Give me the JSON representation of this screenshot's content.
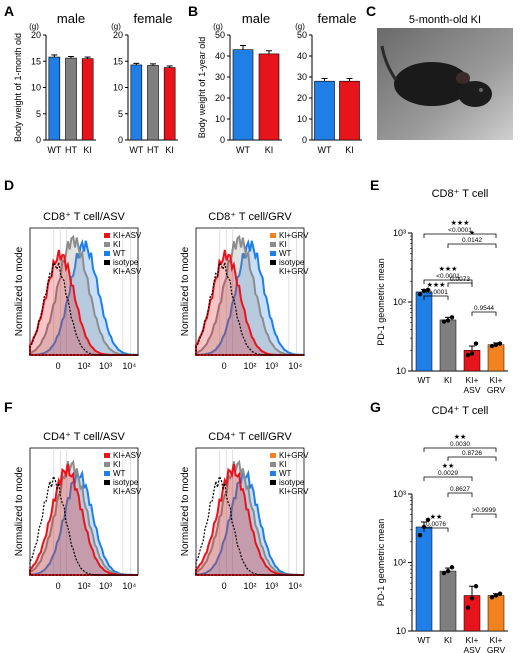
{
  "colors": {
    "wt": "#1f7fe6",
    "ht": "#7f7f7f",
    "ki": "#e8141c",
    "asv": "#e8141c",
    "grv": "#f58220",
    "ki_hist": "#8c8c8c",
    "iso": "#000000"
  },
  "panels": {
    "A": "A",
    "B": "B",
    "C": "C",
    "D": "D",
    "E": "E",
    "F": "F",
    "G": "G"
  },
  "photo": {
    "caption": "5-month-old KI"
  },
  "flow": {
    "x_ticks": [
      "0",
      "10²",
      "10³",
      "10⁴"
    ],
    "ylabel": "Normalized to mode",
    "D_left": {
      "title": "CD8⁺ T cell/ASV",
      "legend": [
        "KI+ASV",
        "KI",
        "WT",
        "isotype",
        "KI+ASV"
      ]
    },
    "D_right": {
      "title": "CD8⁺ T cell/GRV",
      "legend": [
        "KI+GRV",
        "KI",
        "WT",
        "isotype",
        "KI+GRV"
      ]
    },
    "F_left": {
      "title": "CD4⁺ T cell/ASV",
      "legend": [
        "KI+ASV",
        "KI",
        "WT",
        "isotype",
        "KI+ASV"
      ]
    },
    "F_right": {
      "title": "CD4⁺ T cell/GRV",
      "legend": [
        "KI+GRV",
        "KI",
        "WT",
        "isotype",
        "KI+GRV"
      ]
    }
  },
  "chart_data": [
    {
      "id": "A-male",
      "type": "bar",
      "title": "male",
      "ylabel": "Body weight of 1-month old",
      "yunit": "(g)",
      "ylim": [
        0,
        20
      ],
      "yticks": [
        0,
        5,
        10,
        15,
        20
      ],
      "categories": [
        "WT",
        "HT",
        "KI"
      ],
      "values": [
        15.8,
        15.6,
        15.5
      ],
      "errors": [
        0.4,
        0.3,
        0.3
      ],
      "colors": [
        "#1f7fe6",
        "#7f7f7f",
        "#e8141c"
      ]
    },
    {
      "id": "A-female",
      "type": "bar",
      "title": "female",
      "yunit": "(g)",
      "ylim": [
        0,
        20
      ],
      "yticks": [
        0,
        5,
        10,
        15,
        20
      ],
      "categories": [
        "WT",
        "HT",
        "KI"
      ],
      "values": [
        14.3,
        14.2,
        13.8
      ],
      "errors": [
        0.3,
        0.3,
        0.3
      ],
      "colors": [
        "#1f7fe6",
        "#7f7f7f",
        "#e8141c"
      ]
    },
    {
      "id": "B-male",
      "type": "bar",
      "title": "male",
      "ylabel": "Body weight of 1-year old",
      "yunit": "(g)",
      "ylim": [
        0,
        50
      ],
      "yticks": [
        0,
        10,
        20,
        30,
        40,
        50
      ],
      "categories": [
        "WT",
        "KI"
      ],
      "values": [
        43,
        41
      ],
      "errors": [
        2,
        1.5
      ],
      "colors": [
        "#1f7fe6",
        "#e8141c"
      ]
    },
    {
      "id": "B-female",
      "type": "bar",
      "title": "female",
      "yunit": "(g)",
      "ylim": [
        0,
        50
      ],
      "yticks": [
        0,
        10,
        20,
        30,
        40,
        50
      ],
      "categories": [
        "WT",
        "KI"
      ],
      "values": [
        28,
        28
      ],
      "errors": [
        1.3,
        1.3
      ],
      "colors": [
        "#1f7fe6",
        "#e8141c"
      ]
    },
    {
      "id": "E",
      "type": "bar",
      "scale": "log",
      "title": "CD8⁺ T cell",
      "ylabel": "PD-1 geometric mean",
      "ylim": [
        10,
        1000
      ],
      "yticks": [
        10,
        100,
        1000
      ],
      "yticklabels": [
        "10",
        "10²",
        "10³"
      ],
      "categories": [
        "WT",
        "KI",
        "KI+ ASV",
        "KI+ GRV"
      ],
      "values": [
        140,
        55,
        20,
        24
      ],
      "errors": [
        12,
        5,
        3,
        1.5
      ],
      "colors": [
        "#1f7fe6",
        "#7f7f7f",
        "#e8141c",
        "#f58220"
      ],
      "points": [
        [
          130,
          145,
          150
        ],
        [
          52,
          54,
          60
        ],
        [
          17,
          18,
          25
        ],
        [
          23,
          24,
          25
        ]
      ],
      "comparisons": [
        {
          "from": 0,
          "to": 1,
          "stars": "★★★",
          "p": "<0.0001"
        },
        {
          "from": 0,
          "to": 2,
          "stars": "★★★",
          "p": "<0.0001"
        },
        {
          "from": 1,
          "to": 2,
          "stars": "",
          "p": "0.0073"
        },
        {
          "from": 2,
          "to": 3,
          "stars": "",
          "p": "0.9544"
        },
        {
          "from": 0,
          "to": 3,
          "stars": "★★★",
          "p": "<0.0001"
        },
        {
          "from": 1,
          "to": 3,
          "stars": "★",
          "p": "0.0142"
        }
      ]
    },
    {
      "id": "G",
      "type": "bar",
      "scale": "log",
      "title": "CD4⁺ T cell",
      "ylabel": "PD-1 geometric mean",
      "ylim": [
        10,
        1000
      ],
      "yticks": [
        10,
        100,
        1000
      ],
      "yticklabels": [
        "10",
        "10²",
        "10³"
      ],
      "categories": [
        "WT",
        "KI",
        "KI+ ASV",
        "KI+ GRV"
      ],
      "values": [
        330,
        75,
        33,
        33
      ],
      "errors": [
        60,
        8,
        12,
        2
      ],
      "colors": [
        "#1f7fe6",
        "#7f7f7f",
        "#e8141c",
        "#f58220"
      ],
      "points": [
        [
          250,
          330,
          420
        ],
        [
          70,
          75,
          85
        ],
        [
          22,
          30,
          45
        ],
        [
          31,
          33,
          35
        ]
      ],
      "comparisons": [
        {
          "from": 0,
          "to": 1,
          "stars": "★★",
          "p": "0.0076"
        },
        {
          "from": 2,
          "to": 3,
          "stars": "",
          "p": ">0.9999"
        },
        {
          "from": 1,
          "to": 2,
          "stars": "",
          "p": "0.8627"
        },
        {
          "from": 0,
          "to": 2,
          "stars": "★★",
          "p": "0.0029"
        },
        {
          "from": 1,
          "to": 3,
          "stars": "",
          "p": "0.8726"
        },
        {
          "from": 0,
          "to": 3,
          "stars": "★★",
          "p": "0.0030"
        }
      ]
    }
  ]
}
